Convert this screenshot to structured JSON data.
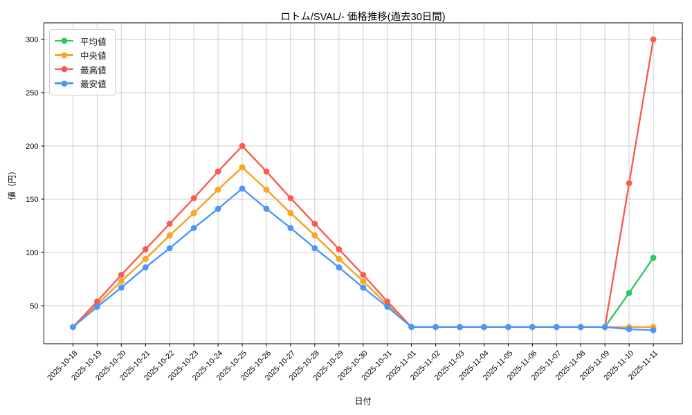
{
  "chart_data": {
    "type": "line",
    "title": "ロトム/SVAL/- 価格推移(過去30日間)",
    "xlabel": "日付",
    "ylabel": "値（円）",
    "x": [
      "2025-10-18",
      "2025-10-19",
      "2025-10-20",
      "2025-10-21",
      "2025-10-22",
      "2025-10-23",
      "2025-10-24",
      "2025-10-25",
      "2025-10-26",
      "2025-10-27",
      "2025-10-28",
      "2025-10-29",
      "2025-10-30",
      "2025-10-31",
      "2025-11-01",
      "2025-11-02",
      "2025-11-03",
      "2025-11-04",
      "2025-11-05",
      "2025-11-06",
      "2025-11-07",
      "2025-11-08",
      "2025-11-09",
      "2025-11-10",
      "2025-11-11"
    ],
    "series": [
      {
        "name": "平均値",
        "key": "average",
        "color": "#2dc863",
        "values": [
          30,
          51,
          73,
          94,
          116,
          137,
          159,
          180,
          159,
          137,
          116,
          94,
          73,
          51,
          30,
          30,
          30,
          30,
          30,
          30,
          30,
          30,
          30,
          62,
          95
        ]
      },
      {
        "name": "中央値",
        "key": "median",
        "color": "#ffa426",
        "values": [
          30,
          51,
          73,
          94,
          116,
          137,
          159,
          180,
          159,
          137,
          116,
          94,
          73,
          51,
          30,
          30,
          30,
          30,
          30,
          30,
          30,
          30,
          30,
          30,
          30
        ]
      },
      {
        "name": "最高値",
        "key": "max",
        "color": "#fa5a51",
        "values": [
          30,
          54,
          79,
          103,
          127,
          151,
          176,
          200,
          176,
          151,
          127,
          103,
          79,
          54,
          30,
          30,
          30,
          30,
          30,
          30,
          30,
          30,
          30,
          165,
          300
        ]
      },
      {
        "name": "最安値",
        "key": "min",
        "color": "#4b97f8",
        "values": [
          30,
          49,
          67,
          86,
          104,
          123,
          141,
          160,
          141,
          123,
          104,
          86,
          67,
          49,
          30,
          30,
          30,
          30,
          30,
          30,
          30,
          30,
          30,
          28,
          27
        ]
      }
    ],
    "yticks": [
      50,
      100,
      150,
      200,
      250,
      300
    ],
    "ylim": [
      14.3,
      315.6
    ],
    "xlim": [
      -1.2,
      25.2
    ],
    "grid": true,
    "legend_position": "upper left"
  },
  "colors": {
    "background": "#ffffff",
    "grid": "#cccccc",
    "spine": "#000000",
    "tick_text": "#000000"
  }
}
